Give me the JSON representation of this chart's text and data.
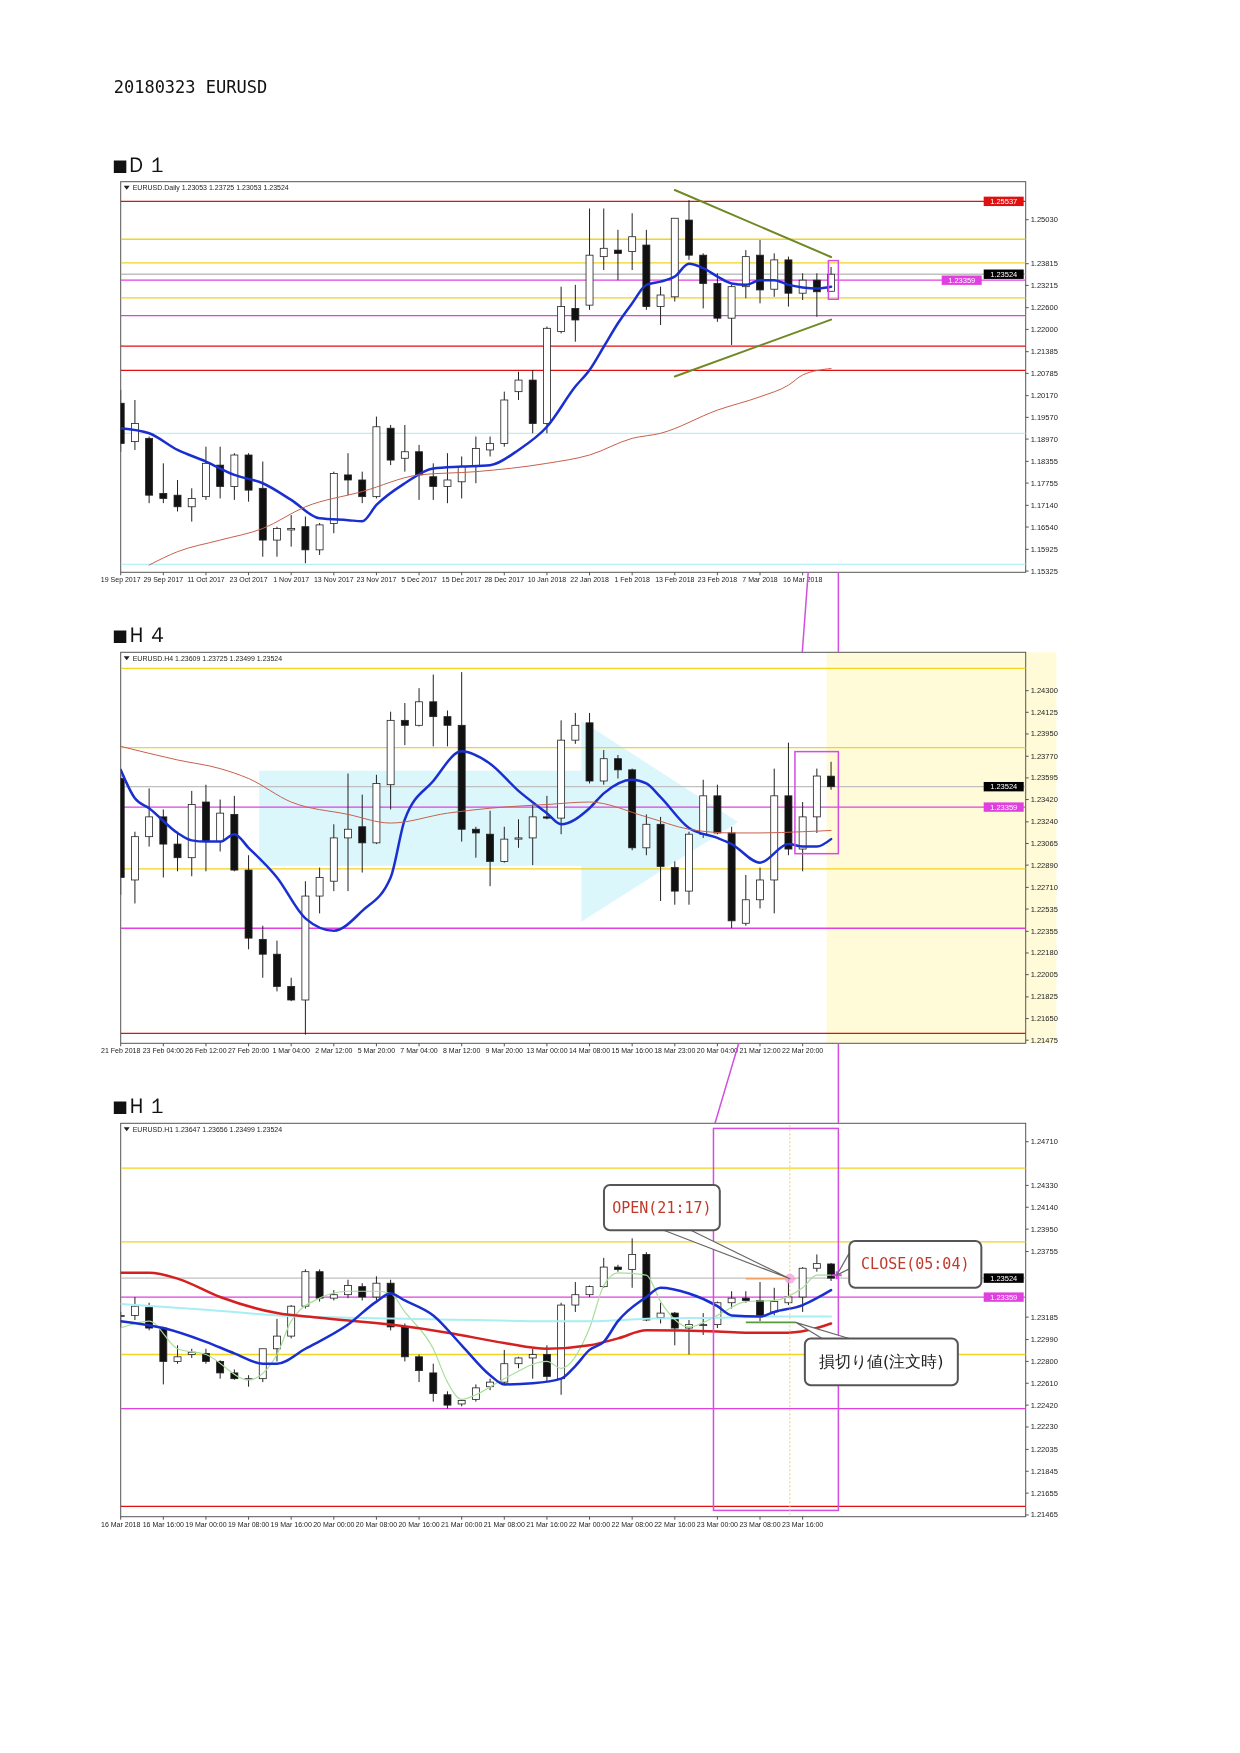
{
  "chart_data": [
    {
      "type": "candlestick",
      "title": "■Ｄ１",
      "annotations": [
        "20180323 EURUSD",
        "EURUSD.Daily 1.23053 1.23725 1.23053 1.23524"
      ],
      "categories": [
        "19 Sep 2017",
        null,
        null,
        "29 Sep 2017",
        null,
        null,
        "11 Oct 2017",
        null,
        null,
        "23 Oct 2017",
        null,
        null,
        "1 Nov 2017",
        null,
        null,
        "13 Nov 2017",
        null,
        null,
        "23 Nov 2017",
        null,
        null,
        "5 Dec 2017",
        null,
        null,
        "15 Dec 2017",
        null,
        null,
        "28 Dec 2017",
        null,
        null,
        "10 Jan 2018",
        null,
        null,
        "22 Jan 2018",
        null,
        null,
        "1 Feb 2018",
        null,
        null,
        "13 Feb 2018",
        null,
        null,
        "23 Feb 2018",
        null,
        null,
        "7 Mar 2018",
        null,
        null,
        "16 Mar 2018",
        null,
        null,
        null,
        null,
        null,
        null,
        null,
        null,
        null,
        null,
        null,
        null,
        null,
        null,
        null
      ],
      "ohlc": [
        [
          1.1996,
          1.2033,
          1.1862,
          1.1885
        ],
        [
          1.189,
          1.2005,
          1.1867,
          1.194
        ],
        [
          1.1899,
          1.1904,
          1.172,
          1.1742
        ],
        [
          1.1747,
          1.183,
          1.172,
          1.1733
        ],
        [
          1.1742,
          1.1784,
          1.1697,
          1.171
        ],
        [
          1.171,
          1.1761,
          1.1669,
          1.1733
        ],
        [
          1.1738,
          1.1876,
          1.1729,
          1.183
        ],
        [
          1.1825,
          1.1876,
          1.1733,
          1.1766
        ],
        [
          1.1766,
          1.1858,
          1.1729,
          1.1853
        ],
        [
          1.1853,
          1.1858,
          1.1724,
          1.1756
        ],
        [
          1.1761,
          1.1835,
          1.1572,
          1.1618
        ],
        [
          1.1618,
          1.1655,
          1.1572,
          1.165
        ],
        [
          1.1646,
          1.1687,
          1.16,
          1.165
        ],
        [
          1.1655,
          1.1683,
          1.1554,
          1.1591
        ],
        [
          1.1591,
          1.1665,
          1.1577,
          1.166
        ],
        [
          1.1664,
          1.1807,
          1.1637,
          1.1802
        ],
        [
          1.1798,
          1.1858,
          1.1742,
          1.1784
        ],
        [
          1.1784,
          1.1807,
          1.172,
          1.1738
        ],
        [
          1.1738,
          1.1959,
          1.1733,
          1.1931
        ],
        [
          1.1927,
          1.1936,
          1.1825,
          1.1839
        ],
        [
          1.1844,
          1.1936,
          1.1807,
          1.1862
        ],
        [
          1.1862,
          1.1881,
          1.1729,
          1.1798
        ],
        [
          1.1793,
          1.183,
          1.1729,
          1.1766
        ],
        [
          1.1766,
          1.1858,
          1.172,
          1.1784
        ],
        [
          1.1779,
          1.1849,
          1.1733,
          1.1821
        ],
        [
          1.1821,
          1.1904,
          1.1775,
          1.1871
        ],
        [
          1.1867,
          1.1904,
          1.1849,
          1.1885
        ],
        [
          1.1885,
          1.2028,
          1.1876,
          1.2005
        ],
        [
          1.2028,
          1.2083,
          1.2005,
          1.206
        ],
        [
          1.206,
          1.2088,
          1.1913,
          1.194
        ],
        [
          1.194,
          1.2208,
          1.1913,
          1.2203
        ],
        [
          1.2194,
          1.2318,
          1.2189,
          1.2263
        ],
        [
          1.2258,
          1.2323,
          1.2166,
          1.2226
        ],
        [
          1.2267,
          1.2534,
          1.2254,
          1.2405
        ],
        [
          1.2401,
          1.2534,
          1.2364,
          1.2424
        ],
        [
          1.2419,
          1.2475,
          1.2336,
          1.241
        ],
        [
          1.2415,
          1.2521,
          1.2364,
          1.2456
        ],
        [
          1.2433,
          1.2475,
          1.2254,
          1.2263
        ],
        [
          1.2263,
          1.2318,
          1.2212,
          1.2295
        ],
        [
          1.229,
          1.2507,
          1.2277,
          1.2507
        ],
        [
          1.2502,
          1.2557,
          1.2392,
          1.2405
        ],
        [
          1.2405,
          1.241,
          1.2258,
          1.2327
        ],
        [
          1.2327,
          1.2355,
          1.2221,
          1.2231
        ],
        [
          1.2231,
          1.2323,
          1.2157,
          1.2318
        ],
        [
          1.2318,
          1.2419,
          1.2286,
          1.2401
        ],
        [
          1.2405,
          1.2447,
          1.2272,
          1.2309
        ],
        [
          1.2311,
          1.241,
          1.229,
          1.2392
        ],
        [
          1.2392,
          1.2401,
          1.2263,
          1.23
        ],
        [
          1.23,
          1.2355,
          1.2281,
          1.2336
        ],
        [
          1.2336,
          1.2355,
          1.2235,
          1.2304
        ],
        [
          1.23053,
          1.23725,
          1.23053,
          1.23524
        ],
        null,
        null,
        null,
        null,
        null,
        null,
        null,
        null,
        null,
        null,
        null,
        null,
        null
      ],
      "series": [
        {
          "type": "line",
          "color": "#1a2fd0",
          "values": [
            1.1927,
            null,
            1.1913,
            null,
            1.1867,
            null,
            1.1835,
            null,
            1.1798,
            null,
            1.1775,
            null,
            1.1729,
            null,
            1.1678,
            null,
            1.1673,
            1.167,
            1.1715,
            null,
            1.1775,
            null,
            1.1816,
            null,
            1.1821,
            null,
            1.1825,
            null,
            1.1867,
            null,
            1.1931,
            null,
            1.2042,
            1.2088,
            1.2152,
            1.2217,
            1.2272,
            1.2323,
            1.2332,
            1.2346,
            1.2381,
            1.2369,
            1.2346,
            1.2327,
            1.2323,
            1.2336,
            1.2336,
            1.2323,
            1.2316,
            1.2313,
            1.2318,
            null,
            null,
            null,
            null,
            null,
            null,
            null,
            null,
            null,
            null,
            null,
            null,
            null
          ]
        },
        {
          "type": "line",
          "color": "#c8604c",
          "values": [
            null,
            null,
            1.1549,
            null,
            1.1586,
            null,
            null,
            1.1618,
            null,
            null,
            1.165,
            null,
            null,
            1.171,
            null,
            null,
            null,
            1.1752,
            null,
            null,
            null,
            1.1798,
            null,
            null,
            null,
            1.1807,
            null,
            null,
            null,
            null,
            1.183,
            null,
            null,
            1.1853,
            null,
            null,
            1.1899,
            null,
            1.1913,
            null,
            null,
            null,
            1.1977,
            null,
            null,
            1.2014,
            null,
            1.2046,
            1.2074,
            null,
            1.2092,
            null,
            null,
            null,
            null,
            null,
            null,
            null,
            null,
            null,
            null,
            null,
            null,
            null
          ]
        },
        {
          "type": "line",
          "color": "#6f8a25",
          "values": [
            null,
            null,
            null,
            null,
            null,
            null,
            null,
            null,
            null,
            null,
            null,
            null,
            null,
            null,
            null,
            null,
            null,
            null,
            null,
            null,
            null,
            null,
            null,
            null,
            null,
            null,
            null,
            null,
            null,
            null,
            null,
            null,
            null,
            null,
            null,
            null,
            null,
            null,
            null,
            1.2585,
            null,
            null,
            null,
            null,
            null,
            null,
            null,
            null,
            null,
            null,
            1.24,
            null,
            null,
            null,
            null,
            null,
            null,
            null,
            null,
            null,
            null,
            null,
            null,
            null
          ]
        },
        {
          "type": "line",
          "color": "#6f8a25",
          "values": [
            null,
            null,
            null,
            null,
            null,
            null,
            null,
            null,
            null,
            null,
            null,
            null,
            null,
            null,
            null,
            null,
            null,
            null,
            null,
            null,
            null,
            null,
            null,
            null,
            null,
            null,
            null,
            null,
            null,
            null,
            null,
            null,
            null,
            null,
            null,
            null,
            null,
            null,
            null,
            1.207,
            null,
            null,
            null,
            null,
            null,
            null,
            null,
            null,
            null,
            null,
            1.2227,
            null,
            null,
            null,
            null,
            null,
            null,
            null,
            null,
            null,
            null,
            null,
            null,
            null
          ]
        }
      ],
      "ylim": [
        1.1529,
        1.2608
      ],
      "yticks": [
        {
          "value": 1.2503,
          "label": "1.25030"
        },
        {
          "value": 1.23815,
          "label": "1.23815"
        },
        {
          "value": 1.23215,
          "label": "1.23215"
        },
        {
          "value": 1.226,
          "label": "1.22600"
        },
        {
          "value": 1.22,
          "label": "1.22000"
        },
        {
          "value": 1.21385,
          "label": "1.21385"
        },
        {
          "value": 1.20785,
          "label": "1.20785"
        },
        {
          "value": 1.2017,
          "label": "1.20170"
        },
        {
          "value": 1.1957,
          "label": "1.19570"
        },
        {
          "value": 1.1897,
          "label": "1.18970"
        },
        {
          "value": 1.18355,
          "label": "1.18355"
        },
        {
          "value": 1.17755,
          "label": "1.17755"
        },
        {
          "value": 1.1714,
          "label": "1.17140"
        },
        {
          "value": 1.1654,
          "label": "1.16540"
        },
        {
          "value": 1.15925,
          "label": "1.15925"
        },
        {
          "value": 1.15325,
          "label": "1.15325"
        }
      ],
      "ref_lines": [
        {
          "axis": "y",
          "value": 1.25537,
          "label": "1.25537",
          "color": "#e01010"
        },
        {
          "axis": "y",
          "value": 1.2449,
          "color": "#f2d422"
        },
        {
          "axis": "y",
          "value": 1.2384,
          "color": "#f2d422"
        },
        {
          "axis": "y",
          "value": 1.23524,
          "label": "1.23524",
          "color": "#c0c0c0"
        },
        {
          "axis": "y",
          "value": 1.23359,
          "label": "1.23359",
          "color": "#e040e0"
        },
        {
          "axis": "y",
          "value": 1.2287,
          "color": "#f2d422"
        },
        {
          "axis": "y",
          "value": 1.2238,
          "color": "#e040e0"
        },
        {
          "axis": "y",
          "value": 1.2154,
          "color": "#e01010"
        },
        {
          "axis": "y",
          "value": 1.2087,
          "color": "#e01010"
        },
        {
          "axis": "y",
          "value": 1.1913,
          "color": "#b8f0f8"
        },
        {
          "axis": "y",
          "value": 1.1551,
          "color": "#b8f0f8"
        }
      ]
    },
    {
      "type": "candlestick",
      "title": "■Ｈ４",
      "annotations": [
        "EURUSD.H4 1.23609 1.23725 1.23499 1.23524"
      ],
      "categories": [
        "21 Feb 2018",
        null,
        null,
        "23 Feb 04:00",
        null,
        null,
        "26 Feb 12:00",
        null,
        null,
        "27 Feb 20:00",
        null,
        null,
        "1 Mar 04:00",
        null,
        null,
        "2 Mar 12:00",
        null,
        null,
        "5 Mar 20:00",
        null,
        null,
        "7 Mar 04:00",
        null,
        null,
        "8 Mar 12:00",
        null,
        null,
        "9 Mar 20:00",
        null,
        null,
        "13 Mar 00:00",
        null,
        null,
        "14 Mar 08:00",
        null,
        null,
        "15 Mar 16:00",
        null,
        null,
        "18 Mar 23:00",
        null,
        null,
        "20 Mar 04:00",
        null,
        null,
        "21 Mar 12:00",
        null,
        null,
        "22 Mar 20:00",
        null,
        null,
        null,
        null,
        null,
        null,
        null,
        null,
        null,
        null,
        null,
        null,
        null,
        null,
        null
      ],
      "ohlc": [
        [
          1.2359,
          1.2362,
          1.2265,
          1.2279
        ],
        [
          1.2277,
          1.2316,
          1.2258,
          1.2312
        ],
        [
          1.2312,
          1.2351,
          1.2304,
          1.2328
        ],
        [
          1.2328,
          1.2334,
          1.2279,
          1.2306
        ],
        [
          1.2306,
          1.2316,
          1.2284,
          1.2295
        ],
        [
          1.2295,
          1.2349,
          1.228,
          1.2338
        ],
        [
          1.234,
          1.2354,
          1.2284,
          1.2308
        ],
        [
          1.2308,
          1.2342,
          1.23,
          1.2331
        ],
        [
          1.233,
          1.2345,
          1.2284,
          1.2285
        ],
        [
          1.2285,
          1.2297,
          1.2221,
          1.223
        ],
        [
          1.2229,
          1.224,
          1.2198,
          1.2217
        ],
        [
          1.2217,
          1.2228,
          1.2187,
          1.2191
        ],
        [
          1.2191,
          1.2198,
          1.2179,
          1.218
        ],
        [
          1.218,
          1.2276,
          1.2152,
          1.2264
        ],
        [
          1.2264,
          1.2287,
          1.225,
          1.2279
        ],
        [
          1.2276,
          1.2322,
          1.2268,
          1.2311
        ],
        [
          1.2311,
          1.2363,
          1.2268,
          1.2318
        ],
        [
          1.232,
          1.2346,
          1.2283,
          1.2307
        ],
        [
          1.2307,
          1.2362,
          1.2306,
          1.2355
        ],
        [
          1.2354,
          1.2413,
          1.2334,
          1.2406
        ],
        [
          1.2406,
          1.242,
          1.2386,
          1.2402
        ],
        [
          1.2402,
          1.2432,
          1.2401,
          1.2421
        ],
        [
          1.2421,
          1.2443,
          1.2385,
          1.2409
        ],
        [
          1.2409,
          1.2414,
          1.2385,
          1.2402
        ],
        [
          1.2402,
          1.2445,
          1.2308,
          1.2318
        ],
        [
          1.2318,
          1.232,
          1.2295,
          1.2315
        ],
        [
          1.2314,
          1.2333,
          1.2272,
          1.2292
        ],
        [
          1.2292,
          1.232,
          1.2291,
          1.231
        ],
        [
          1.231,
          1.2326,
          1.2303,
          1.2311
        ],
        [
          1.2311,
          1.2338,
          1.2289,
          1.2328
        ],
        [
          1.2328,
          1.2345,
          1.2326,
          1.2327
        ],
        [
          1.2327,
          1.2406,
          1.2314,
          1.239
        ],
        [
          1.239,
          1.2412,
          1.2387,
          1.2402
        ],
        [
          1.2404,
          1.2412,
          1.2355,
          1.2357
        ],
        [
          1.2357,
          1.2382,
          1.2354,
          1.2375
        ],
        [
          1.2375,
          1.2378,
          1.2359,
          1.2366
        ],
        [
          1.2366,
          1.2367,
          1.2301,
          1.2303
        ],
        [
          1.2303,
          1.233,
          1.2297,
          1.2322
        ],
        [
          1.2322,
          1.2328,
          1.226,
          1.2288
        ],
        [
          1.2287,
          1.2292,
          1.2257,
          1.2268
        ],
        [
          1.2268,
          1.2316,
          1.2257,
          1.2314
        ],
        [
          1.2314,
          1.2358,
          1.2311,
          1.2345
        ],
        [
          1.2345,
          1.2354,
          1.2314,
          1.2315
        ],
        [
          1.2315,
          1.232,
          1.2238,
          1.2244
        ],
        [
          1.2242,
          1.2281,
          1.224,
          1.2261
        ],
        [
          1.2261,
          1.2287,
          1.2254,
          1.2277
        ],
        [
          1.2277,
          1.2367,
          1.225,
          1.2345
        ],
        [
          1.2345,
          1.2388,
          1.2297,
          1.2302
        ],
        [
          1.2302,
          1.234,
          1.2284,
          1.2328
        ],
        [
          1.2328,
          1.2367,
          1.2315,
          1.2361
        ],
        [
          1.23609,
          1.23725,
          1.23499,
          1.23524
        ],
        null,
        null,
        null,
        null,
        null,
        null,
        null,
        null,
        null,
        null,
        null,
        null,
        null
      ],
      "series": [
        {
          "type": "line",
          "color": "#1a2fd0",
          "values": [
            1.2366,
            1.2343,
            1.2335,
            null,
            1.2315,
            1.2309,
            1.2308,
            1.2308,
            1.2314,
            1.2303,
            null,
            1.2279,
            null,
            1.2246,
            null,
            1.2236,
            null,
            1.2252,
            null,
            1.2279,
            1.2326,
            null,
            1.2357,
            null,
            1.2381,
            null,
            1.2371,
            null,
            1.2349,
            null,
            1.2331,
            1.2322,
            null,
            1.2335,
            1.2347,
            null,
            1.2358,
            1.2355,
            1.2344,
            null,
            1.2319,
            null,
            1.2311,
            1.2306,
            null,
            1.2291,
            null,
            1.2306,
            1.2304,
            1.2304,
            1.231,
            null,
            null,
            null,
            null,
            null,
            null,
            null,
            null,
            null,
            null,
            null,
            null,
            null
          ]
        },
        {
          "type": "line",
          "color": "#c8604c",
          "values": [
            1.2385,
            null,
            null,
            null,
            1.2374,
            null,
            null,
            1.2367,
            null,
            1.2359,
            null,
            null,
            1.234,
            null,
            null,
            null,
            1.233,
            null,
            null,
            1.2323,
            null,
            null,
            null,
            1.2331,
            null,
            null,
            1.2335,
            null,
            null,
            null,
            1.2338,
            null,
            null,
            1.234,
            null,
            null,
            null,
            1.2328,
            null,
            null,
            1.2318,
            null,
            null,
            1.2315,
            null,
            1.2315,
            null,
            null,
            1.2316,
            null,
            1.2317,
            null,
            null,
            null,
            null,
            null,
            null,
            null,
            null,
            null,
            null,
            null,
            null,
            null
          ]
        }
      ],
      "ylim": [
        1.2145,
        1.2461
      ],
      "yticks": [
        {
          "value": 1.243,
          "label": "1.24300"
        },
        {
          "value": 1.24125,
          "label": "1.24125"
        },
        {
          "value": 1.2395,
          "label": "1.23950"
        },
        {
          "value": 1.2377,
          "label": "1.23770"
        },
        {
          "value": 1.23595,
          "label": "1.23595"
        },
        {
          "value": 1.2342,
          "label": "1.23420"
        },
        {
          "value": 1.2324,
          "label": "1.23240"
        },
        {
          "value": 1.23065,
          "label": "1.23065"
        },
        {
          "value": 1.2289,
          "label": "1.22890"
        },
        {
          "value": 1.2271,
          "label": "1.22710"
        },
        {
          "value": 1.22535,
          "label": "1.22535"
        },
        {
          "value": 1.22355,
          "label": "1.22355"
        },
        {
          "value": 1.2218,
          "label": "1.22180"
        },
        {
          "value": 1.22005,
          "label": "1.22005"
        },
        {
          "value": 1.21825,
          "label": "1.21825"
        },
        {
          "value": 1.2165,
          "label": "1.21650"
        },
        {
          "value": 1.21475,
          "label": "1.21475"
        }
      ],
      "ref_lines": [
        {
          "axis": "y",
          "value": 1.2448,
          "color": "#f2d422"
        },
        {
          "axis": "y",
          "value": 1.2384,
          "color": "#f2d422"
        },
        {
          "axis": "y",
          "value": 1.23524,
          "label": "1.23524",
          "color": "#c0c0c0"
        },
        {
          "axis": "y",
          "value": 1.23359,
          "label": "1.23359",
          "color": "#e040e0"
        },
        {
          "axis": "y",
          "value": 1.2286,
          "color": "#f2d422"
        },
        {
          "axis": "y",
          "value": 1.2238,
          "color": "#e040e0"
        },
        {
          "axis": "y",
          "value": 1.2153,
          "color": "#e01010"
        }
      ]
    },
    {
      "type": "candlestick",
      "title": "■Ｈ１",
      "annotations": [
        "EURUSD.H1 1.23647 1.23656 1.23499 1.23524",
        "OPEN(21:17)",
        "CLOSE(05:04)",
        "損切り値(注文時)"
      ],
      "categories": [
        "16 Mar 2018",
        null,
        null,
        "16 Mar 16:00",
        null,
        null,
        "19 Mar 00:00",
        null,
        null,
        "19 Mar 08:00",
        null,
        null,
        "19 Mar 16:00",
        null,
        null,
        "20 Mar 00:00",
        null,
        null,
        "20 Mar 08:00",
        null,
        null,
        "20 Mar 16:00",
        null,
        null,
        "21 Mar 00:00",
        null,
        null,
        "21 Mar 08:00",
        null,
        null,
        "21 Mar 16:00",
        null,
        null,
        "22 Mar 00:00",
        null,
        null,
        "22 Mar 08:00",
        null,
        null,
        "22 Mar 16:00",
        null,
        null,
        "23 Mar 00:00",
        null,
        null,
        "23 Mar 08:00",
        null,
        null,
        "23 Mar 16:00",
        null,
        null,
        null,
        null,
        null,
        null,
        null,
        null,
        null,
        null,
        null,
        null,
        null,
        null,
        null
      ],
      "ohlc": [
        [
          1.2319,
          1.2323,
          1.2309,
          1.232
        ],
        [
          1.232,
          1.2336,
          1.2316,
          1.2328
        ],
        [
          1.2327,
          1.2331,
          1.2307,
          1.2309
        ],
        [
          1.2309,
          1.231,
          1.226,
          1.228
        ],
        [
          1.228,
          1.2294,
          1.2278,
          1.2284
        ],
        [
          1.2286,
          1.2291,
          1.2283,
          1.2288
        ],
        [
          1.2287,
          1.2291,
          1.2278,
          1.228
        ],
        [
          1.228,
          1.2281,
          1.2265,
          1.227
        ],
        [
          1.227,
          1.2273,
          1.2264,
          1.2265
        ],
        [
          1.2265,
          1.2268,
          1.2258,
          1.2265
        ],
        [
          1.2265,
          1.2291,
          1.2262,
          1.2291
        ],
        [
          1.2291,
          1.2317,
          1.228,
          1.2302
        ],
        [
          1.2302,
          1.2329,
          1.23,
          1.2328
        ],
        [
          1.2328,
          1.236,
          1.2326,
          1.2358
        ],
        [
          1.2358,
          1.236,
          1.2332,
          1.2335
        ],
        [
          1.2335,
          1.2342,
          1.2333,
          1.2338
        ],
        [
          1.2338,
          1.2351,
          1.2335,
          1.2346
        ],
        [
          1.2345,
          1.2348,
          1.2333,
          1.2336
        ],
        [
          1.2336,
          1.2354,
          1.2333,
          1.2348
        ],
        [
          1.2348,
          1.2351,
          1.2307,
          1.231
        ],
        [
          1.231,
          1.2313,
          1.228,
          1.2284
        ],
        [
          1.2284,
          1.2286,
          1.2262,
          1.2272
        ],
        [
          1.227,
          1.2278,
          1.2245,
          1.2252
        ],
        [
          1.2251,
          1.2254,
          1.2239,
          1.2242
        ],
        [
          1.2243,
          1.2247,
          1.2241,
          1.2246
        ],
        [
          1.2247,
          1.226,
          1.2245,
          1.2257
        ],
        [
          1.2258,
          1.2265,
          1.2255,
          1.2262
        ],
        [
          1.2262,
          1.229,
          1.226,
          1.2278
        ],
        [
          1.2278,
          1.2284,
          1.2274,
          1.2283
        ],
        [
          1.2283,
          1.2291,
          1.2265,
          1.2286
        ],
        [
          1.2286,
          1.2294,
          1.2262,
          1.2267
        ],
        [
          1.2265,
          1.2331,
          1.2251,
          1.2329
        ],
        [
          1.2329,
          1.2349,
          1.2323,
          1.2338
        ],
        [
          1.2338,
          1.2346,
          1.2336,
          1.2345
        ],
        [
          1.2345,
          1.237,
          1.2344,
          1.2362
        ],
        [
          1.2362,
          1.2364,
          1.2358,
          1.236
        ],
        [
          1.236,
          1.2387,
          1.2344,
          1.2373
        ],
        [
          1.2373,
          1.2375,
          1.2315,
          1.2316
        ],
        [
          1.2318,
          1.2331,
          1.2313,
          1.2322
        ],
        [
          1.2322,
          1.2323,
          1.2294,
          1.2309
        ],
        [
          1.2309,
          1.2316,
          1.2286,
          1.2312
        ],
        [
          1.2312,
          1.2322,
          1.2303,
          1.2312
        ],
        [
          1.2312,
          1.2332,
          1.2309,
          1.2331
        ],
        [
          1.2331,
          1.2341,
          1.2326,
          1.2335
        ],
        [
          1.2335,
          1.2341,
          1.2331,
          1.2333
        ],
        [
          1.2333,
          1.2349,
          1.2315,
          1.232
        ],
        [
          1.2323,
          1.2344,
          1.232,
          1.2332
        ],
        [
          1.2331,
          1.2352,
          1.2329,
          1.2336
        ],
        [
          1.2336,
          1.2362,
          1.2323,
          1.2361
        ],
        [
          1.2361,
          1.2373,
          1.2358,
          1.2365
        ],
        [
          1.23647,
          1.23656,
          1.23499,
          1.23524
        ],
        null,
        null,
        null,
        null,
        null,
        null,
        null,
        null,
        null,
        null,
        null,
        null,
        null
      ],
      "series": [
        {
          "type": "line",
          "color": "#a6df98",
          "values": [
            1.2309,
            null,
            1.2315,
            null,
            1.2291,
            null,
            1.2286,
            null,
            null,
            1.2264,
            null,
            1.2286,
            1.2315,
            null,
            1.2335,
            null,
            1.2341,
            null,
            1.2341,
            1.2339,
            1.2323,
            null,
            1.2291,
            1.2262,
            1.2247,
            1.2251,
            null,
            1.2265,
            null,
            null,
            1.228,
            1.2274,
            null,
            1.2309,
            1.2346,
            1.2357,
            null,
            1.2355,
            1.2332,
            null,
            1.231,
            null,
            1.232,
            null,
            1.2332,
            null,
            1.2333,
            null,
            1.2344,
            1.2355,
            1.2355,
            null,
            null,
            null,
            null,
            null,
            null,
            null,
            null,
            null,
            null,
            null,
            null,
            null
          ]
        },
        {
          "type": "line",
          "color": "#a8eef2",
          "values": [
            1.233,
            null,
            null,
            null,
            null,
            null,
            1.2325,
            null,
            null,
            null,
            null,
            1.232,
            null,
            null,
            null,
            null,
            1.2318,
            null,
            null,
            null,
            1.2317,
            null,
            null,
            null,
            null,
            1.2316,
            null,
            null,
            null,
            null,
            1.2315,
            null,
            null,
            1.2315,
            null,
            null,
            null,
            1.2317,
            null,
            null,
            null,
            null,
            1.2318,
            null,
            null,
            null,
            1.2319,
            null,
            null,
            null,
            1.2319,
            null,
            null,
            null,
            null,
            null,
            null,
            null,
            null,
            null,
            null,
            null,
            null,
            null
          ]
        },
        {
          "type": "line",
          "color": "#d42020",
          "values": [
            1.2357,
            null,
            1.2357,
            null,
            1.2352,
            null,
            null,
            1.2336,
            null,
            null,
            null,
            1.2322,
            null,
            null,
            1.2318,
            null,
            null,
            null,
            null,
            1.2312,
            null,
            null,
            null,
            1.2305,
            null,
            null,
            null,
            1.2296,
            null,
            null,
            1.2291,
            null,
            null,
            1.2294,
            null,
            1.23,
            null,
            1.2307,
            null,
            null,
            null,
            null,
            1.2306,
            null,
            1.2305,
            null,
            null,
            1.2305,
            null,
            1.2309,
            1.2313,
            null,
            null,
            null,
            null,
            null,
            null,
            null,
            null,
            null,
            null,
            null,
            null,
            null
          ]
        },
        {
          "type": "line",
          "color": "#1a2fd0",
          "values": [
            1.2315,
            null,
            null,
            1.2309,
            null,
            null,
            1.2297,
            null,
            1.2287,
            null,
            1.2278,
            1.2278,
            null,
            1.2291,
            null,
            null,
            1.2312,
            null,
            1.2332,
            1.2339,
            1.2333,
            null,
            1.232,
            null,
            1.2294,
            null,
            1.2268,
            1.226,
            null,
            1.2261,
            null,
            1.2265,
            1.2276,
            1.229,
            1.2297,
            1.2315,
            null,
            1.2336,
            1.2344,
            null,
            1.2339,
            null,
            1.2328,
            1.232,
            null,
            1.2319,
            1.2323,
            null,
            1.2329,
            1.2335,
            1.2342,
            null,
            null,
            null,
            null,
            null,
            null,
            null,
            null,
            null,
            null,
            null,
            null,
            null
          ]
        }
      ],
      "ylim": [
        1.2145,
        1.2487
      ],
      "yticks": [
        {
          "value": 1.2471,
          "label": "1.24710"
        },
        {
          "value": 1.2433,
          "label": "1.24330"
        },
        {
          "value": 1.2414,
          "label": "1.24140"
        },
        {
          "value": 1.2395,
          "label": "1.23950"
        },
        {
          "value": 1.23755,
          "label": "1.23755"
        },
        {
          "value": 1.23185,
          "label": "1.23185"
        },
        {
          "value": 1.2299,
          "label": "1.22990"
        },
        {
          "value": 1.228,
          "label": "1.22800"
        },
        {
          "value": 1.2261,
          "label": "1.22610"
        },
        {
          "value": 1.2242,
          "label": "1.22420"
        },
        {
          "value": 1.2223,
          "label": "1.22230"
        },
        {
          "value": 1.22035,
          "label": "1.22035"
        },
        {
          "value": 1.21845,
          "label": "1.21845"
        },
        {
          "value": 1.21655,
          "label": "1.21655"
        },
        {
          "value": 1.21465,
          "label": "1.21465"
        }
      ],
      "ref_lines": [
        {
          "axis": "y",
          "value": 1.2448,
          "color": "#f2d422"
        },
        {
          "axis": "y",
          "value": 1.2384,
          "color": "#f2d422"
        },
        {
          "axis": "y",
          "value": 1.23524,
          "label": "1.23524",
          "color": "#c0c0c0"
        },
        {
          "axis": "y",
          "value": 1.23359,
          "label": "1.23359",
          "color": "#e040e0"
        },
        {
          "axis": "y",
          "value": 1.2286,
          "color": "#f2d422"
        },
        {
          "axis": "y",
          "value": 1.2239,
          "color": "#e040e0"
        },
        {
          "axis": "y",
          "value": 1.2154,
          "color": "#e01010"
        }
      ]
    }
  ]
}
